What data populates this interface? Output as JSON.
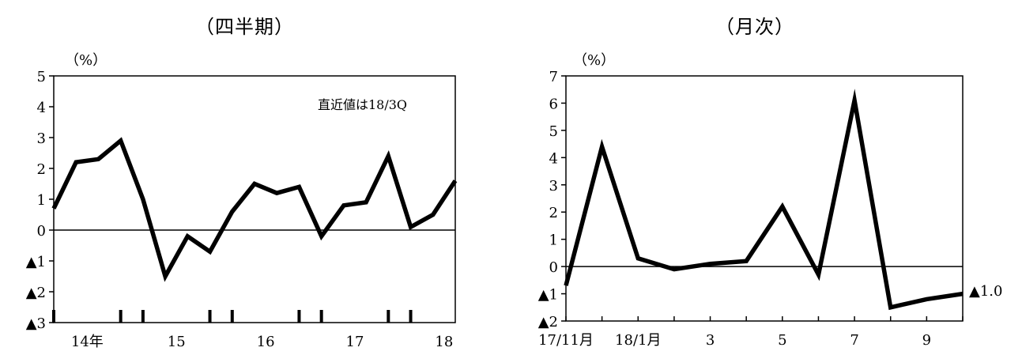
{
  "chart_data": [
    {
      "type": "line",
      "title": "（四半期）",
      "unit_label": "（%）",
      "annotation": "直近値は18/3Q",
      "ylim": [
        -3,
        5
      ],
      "y_ticks": [
        {
          "value": 5,
          "label": "5"
        },
        {
          "value": 4,
          "label": "4"
        },
        {
          "value": 3,
          "label": "3"
        },
        {
          "value": 2,
          "label": "2"
        },
        {
          "value": 1,
          "label": "1"
        },
        {
          "value": 0,
          "label": "0"
        },
        {
          "value": -1,
          "label": "▲1"
        },
        {
          "value": -2,
          "label": "▲2"
        },
        {
          "value": -3,
          "label": "▲3"
        }
      ],
      "x": [
        "14/1Q",
        "14/2Q",
        "14/3Q",
        "14/4Q",
        "15/1Q",
        "15/2Q",
        "15/3Q",
        "15/4Q",
        "16/1Q",
        "16/2Q",
        "16/3Q",
        "16/4Q",
        "17/1Q",
        "17/2Q",
        "17/3Q",
        "17/4Q",
        "18/1Q",
        "18/2Q",
        "18/3Q"
      ],
      "x_tick_labels": [
        {
          "index": 1.5,
          "label": "14年"
        },
        {
          "index": 5.5,
          "label": "15"
        },
        {
          "index": 9.5,
          "label": "16"
        },
        {
          "index": 13.5,
          "label": "17"
        },
        {
          "index": 17.5,
          "label": "18"
        }
      ],
      "year_marks": [
        0,
        3,
        4,
        7,
        8,
        11,
        12,
        15,
        16
      ],
      "values": [
        0.7,
        2.2,
        2.3,
        2.9,
        1.0,
        -1.5,
        -0.2,
        -0.7,
        0.6,
        1.5,
        1.2,
        1.4,
        -0.2,
        0.8,
        0.9,
        2.4,
        0.1,
        0.5,
        1.6
      ]
    },
    {
      "type": "line",
      "title": "（月次）",
      "unit_label": "（%）",
      "end_label": "▲1.0",
      "ylim": [
        -2,
        7
      ],
      "y_ticks": [
        {
          "value": 7,
          "label": "7"
        },
        {
          "value": 6,
          "label": "6"
        },
        {
          "value": 5,
          "label": "5"
        },
        {
          "value": 4,
          "label": "4"
        },
        {
          "value": 3,
          "label": "3"
        },
        {
          "value": 2,
          "label": "2"
        },
        {
          "value": 1,
          "label": "1"
        },
        {
          "value": 0,
          "label": "0"
        },
        {
          "value": -1,
          "label": "▲1"
        },
        {
          "value": -2,
          "label": "▲2"
        }
      ],
      "x": [
        "17/11",
        "17/12",
        "18/1",
        "18/2",
        "18/3",
        "18/4",
        "18/5",
        "18/6",
        "18/7",
        "18/8",
        "18/9",
        "18/10"
      ],
      "x_tick_labels": [
        {
          "index": 0,
          "label": "17/11月"
        },
        {
          "index": 2,
          "label": "18/1月"
        },
        {
          "index": 4,
          "label": "3"
        },
        {
          "index": 6,
          "label": "5"
        },
        {
          "index": 8,
          "label": "7"
        },
        {
          "index": 10,
          "label": "9"
        }
      ],
      "values": [
        -0.7,
        4.4,
        0.3,
        -0.1,
        0.1,
        0.2,
        2.2,
        -0.3,
        6.1,
        -1.5,
        -1.2,
        -1.0
      ]
    }
  ]
}
